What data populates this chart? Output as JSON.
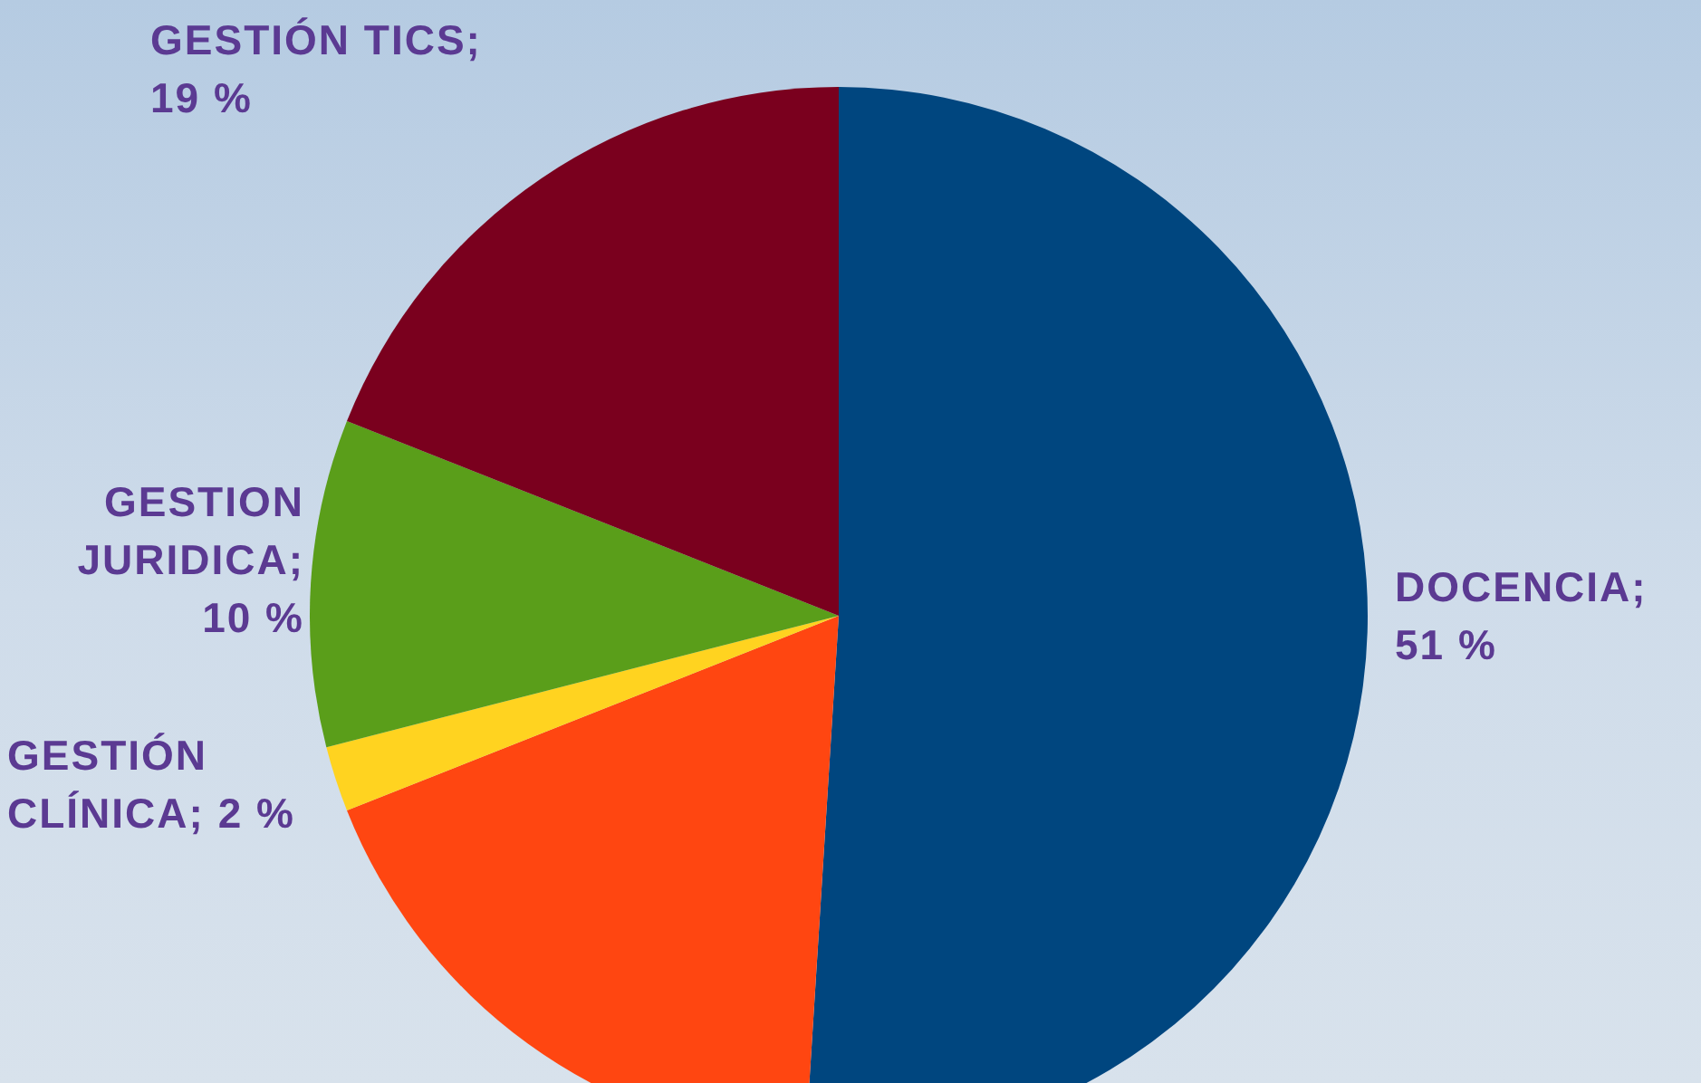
{
  "chart_data": {
    "type": "pie",
    "categories": [
      "DOCENCIA",
      null,
      "GESTIÓN CLÍNICA",
      "GESTION JURIDICA",
      "GESTIÓN TICS"
    ],
    "values": [
      51,
      18,
      2,
      10,
      19
    ],
    "value_labels": [
      "; 51 %",
      null,
      "; 2 %",
      "; 10 %",
      "; 19 %"
    ],
    "colors": [
      "#00467f",
      "#ff4611",
      "#ffd320",
      "#5a9e1a",
      "#7a001e"
    ],
    "legend": false
  }
}
